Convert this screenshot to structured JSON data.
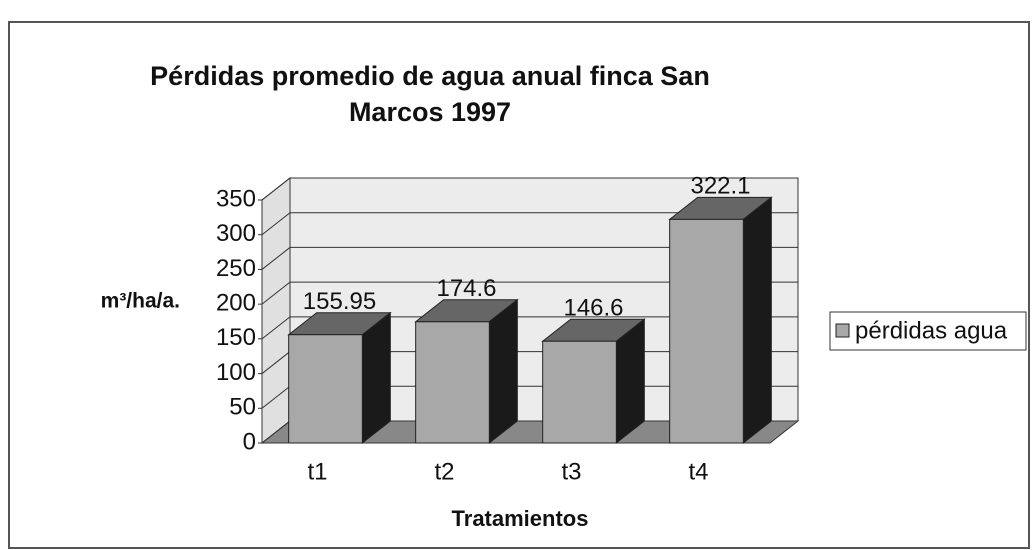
{
  "chart_data": {
    "type": "bar3d",
    "title": "Pérdidas promedio de agua anual finca San Marcos 1997",
    "x_label": "Tratamientos",
    "y_label": "m³/ha/a.",
    "categories": [
      "t1",
      "t2",
      "t3",
      "t4"
    ],
    "series": [
      {
        "name": "pérdidas agua",
        "color": "#a8a8a8",
        "values": [
          155.95,
          174.6,
          146.6,
          322.1
        ]
      }
    ],
    "ylim": [
      0,
      350
    ],
    "yticks": [
      0,
      50,
      100,
      150,
      200,
      250,
      300,
      350
    ],
    "grid": true,
    "legend": "right"
  }
}
